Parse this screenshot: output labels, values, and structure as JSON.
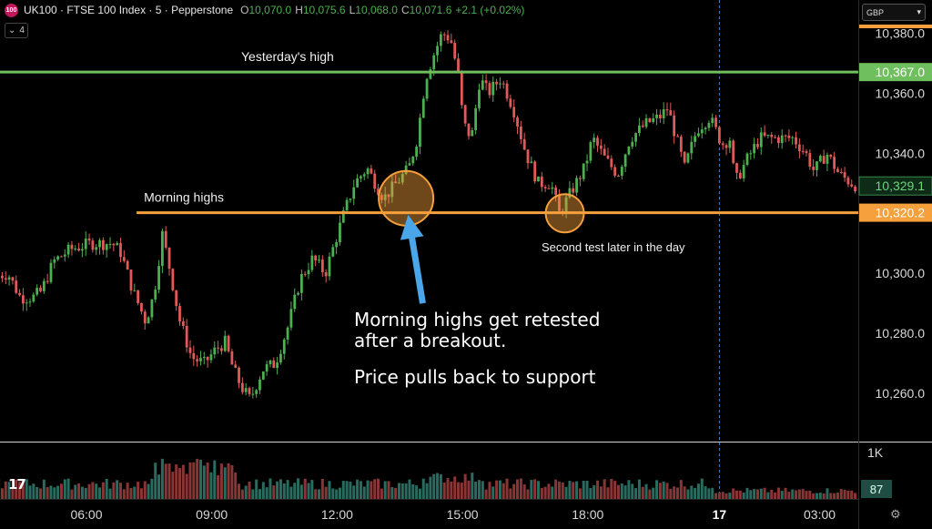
{
  "header": {
    "logo_text": "100",
    "symbol_title": "UK100 · FTSE 100 Index · 5 · Pepperstone",
    "ohlc": [
      {
        "k": "O",
        "v": "10,070.0"
      },
      {
        "k": "H",
        "v": "10,075.6"
      },
      {
        "k": "L",
        "v": "10,068.0"
      },
      {
        "k": "C",
        "v": "10,071.6"
      },
      {
        "k": "",
        "v": "+2.1 (+0.02%)"
      }
    ],
    "indicators_count": "4",
    "currency": "GBP"
  },
  "colors": {
    "up": "#4caf50",
    "down": "#e05a5a",
    "green_line": "#6fbf5e",
    "orange": "#f5a03c",
    "arrow": "#4aa6e8"
  },
  "chart_data": {
    "type": "candlestick",
    "y_ticks": [
      "10,380.0",
      "10,360.0",
      "10,340.0",
      "10,320.0",
      "10,300.0",
      "10,280.0",
      "10,260.0"
    ],
    "y_tick_values": [
      10380,
      10360,
      10340,
      10320,
      10300,
      10280,
      10260
    ],
    "ylim": [
      10244,
      10391
    ],
    "x_ticks": [
      {
        "label": "06:00",
        "t": 0
      },
      {
        "label": "09:00",
        "t": 3
      },
      {
        "label": "12:00",
        "t": 6
      },
      {
        "label": "15:00",
        "t": 9
      },
      {
        "label": "18:00",
        "t": 12
      },
      {
        "label": "17",
        "t": 15.15,
        "bold": true
      },
      {
        "label": "03:00",
        "t": 17.55
      }
    ],
    "price_path": [
      [
        -2.1,
        10299
      ],
      [
        -1.8,
        10300
      ],
      [
        -1.5,
        10292
      ],
      [
        -1.2,
        10292
      ],
      [
        -1.0,
        10294
      ],
      [
        -0.7,
        10304
      ],
      [
        -0.3,
        10308
      ],
      [
        0.2,
        10310
      ],
      [
        0.7,
        10310
      ],
      [
        0.9,
        10307
      ],
      [
        1.2,
        10294
      ],
      [
        1.5,
        10284
      ],
      [
        1.7,
        10293
      ],
      [
        1.9,
        10313
      ],
      [
        2.1,
        10300
      ],
      [
        2.3,
        10285
      ],
      [
        2.6,
        10272
      ],
      [
        2.9,
        10270
      ],
      [
        3.2,
        10275
      ],
      [
        3.4,
        10277
      ],
      [
        3.6,
        10268
      ],
      [
        3.8,
        10262
      ],
      [
        4.0,
        10258
      ],
      [
        4.3,
        10268
      ],
      [
        4.6,
        10270
      ],
      [
        4.9,
        10282
      ],
      [
        5.2,
        10298
      ],
      [
        5.5,
        10305
      ],
      [
        5.8,
        10300
      ],
      [
        6.2,
        10318
      ],
      [
        6.5,
        10330
      ],
      [
        6.8,
        10335
      ],
      [
        7.2,
        10325
      ],
      [
        7.5,
        10330
      ],
      [
        7.8,
        10335
      ],
      [
        8.0,
        10345
      ],
      [
        8.2,
        10365
      ],
      [
        8.4,
        10373
      ],
      [
        8.6,
        10380
      ],
      [
        8.8,
        10378
      ],
      [
        9.0,
        10365
      ],
      [
        9.1,
        10350
      ],
      [
        9.3,
        10345
      ],
      [
        9.5,
        10365
      ],
      [
        9.7,
        10360
      ],
      [
        10.0,
        10365
      ],
      [
        10.3,
        10355
      ],
      [
        10.6,
        10340
      ],
      [
        10.9,
        10330
      ],
      [
        11.2,
        10330
      ],
      [
        11.4,
        10320
      ],
      [
        11.6,
        10325
      ],
      [
        11.8,
        10330
      ],
      [
        12.0,
        10335
      ],
      [
        12.2,
        10345
      ],
      [
        12.5,
        10338
      ],
      [
        12.8,
        10333
      ],
      [
        13.1,
        10345
      ],
      [
        13.5,
        10350
      ],
      [
        13.8,
        10352
      ],
      [
        14.0,
        10355
      ],
      [
        14.2,
        10345
      ],
      [
        14.4,
        10335
      ],
      [
        14.7,
        10348
      ],
      [
        15.0,
        10352
      ],
      [
        15.3,
        10343
      ],
      [
        15.5,
        10345
      ],
      [
        15.6,
        10330
      ],
      [
        15.9,
        10338
      ],
      [
        16.2,
        10345
      ],
      [
        16.6,
        10345
      ],
      [
        17.0,
        10345
      ],
      [
        17.3,
        10340
      ],
      [
        17.5,
        10334
      ],
      [
        17.8,
        10340
      ],
      [
        18.1,
        10333
      ],
      [
        18.4,
        10330
      ],
      [
        18.7,
        10328
      ]
    ],
    "volume_ylim": [
      0,
      1000
    ],
    "volume_label": "1K",
    "volume_last": "87",
    "levels": [
      {
        "name": "yesterday_high",
        "value": 10367.0,
        "label": "10,367.0",
        "text": "Yesterday's high",
        "color": "#6fbf5e"
      },
      {
        "name": "morning_highs",
        "value": 10320.2,
        "label": "10,320.2",
        "text": "Morning highs",
        "color": "#f5a03c",
        "t_start": 1.2
      }
    ],
    "last_price": {
      "value": 10329.1,
      "label": "10,329.1"
    },
    "session_break_t": 15.15,
    "circles": [
      {
        "t": 7.65,
        "price": 10325,
        "name": "retest-circle-1"
      },
      {
        "t": 11.45,
        "price": 10320,
        "name": "retest-circle-2"
      }
    ],
    "annotations": {
      "second_test": "Second test later in the day",
      "main_line1": "Morning highs get retested",
      "main_line2": "after a breakout.",
      "main_line3": "Price pulls back to support"
    },
    "arrow": {
      "from_t": 8.05,
      "from_price": 10290,
      "to_t": 7.7,
      "to_price": 10308
    }
  }
}
